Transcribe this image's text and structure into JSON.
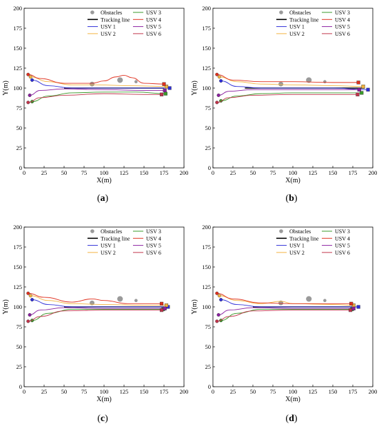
{
  "figure": {
    "colors": {
      "tracking": "#000000",
      "usv1": "#2d2dd8",
      "usv2": "#f2b340",
      "usv3": "#3a9a2a",
      "usv4": "#e0301e",
      "usv5": "#8a1fa0",
      "usv6": "#c0334a",
      "obstacle": "#9a9a9a",
      "axis": "#000000"
    },
    "legend_labels": {
      "obstacles": "Obstacles",
      "tracking": "Tracking line",
      "usv1": "USV 1",
      "usv2": "USV 2",
      "usv3": "USV 3",
      "usv4": "USV 4",
      "usv5": "USV 5",
      "usv6": "USV 6"
    },
    "axis_labels": {
      "x": "X(m)",
      "y": "Y(m)"
    },
    "ticks": {
      "x": [
        "0",
        "25",
        "50",
        "75",
        "100",
        "125",
        "150",
        "175",
        "200"
      ],
      "y": [
        "0",
        "25",
        "50",
        "75",
        "100",
        "125",
        "150",
        "175",
        "200"
      ]
    }
  },
  "chart_data": [
    {
      "type": "line",
      "panel_label": {
        "open": "(",
        "letter": "a",
        "close": ")"
      },
      "xlabel": "X(m)",
      "ylabel": "Y(m)",
      "xlim": [
        0,
        200
      ],
      "ylim": [
        0,
        200
      ],
      "legend_placement": "top-center",
      "obstacles": [
        {
          "x": 85,
          "y": 105,
          "r": 3
        },
        {
          "x": 120,
          "y": 110,
          "r": 3.5
        },
        {
          "x": 140,
          "y": 108,
          "r": 2
        }
      ],
      "tracking_line": {
        "x": [
          50,
          175
        ],
        "y": [
          100,
          100
        ]
      },
      "series": [
        {
          "name": "USV 1",
          "key": "usv1",
          "x": [
            10,
            30,
            60,
            100,
            140,
            182
          ],
          "y": [
            110,
            103,
            100,
            100,
            100,
            100
          ]
        },
        {
          "name": "USV 2",
          "key": "usv2",
          "x": [
            8,
            30,
            60,
            90,
            130,
            178
          ],
          "y": [
            114,
            108,
            104,
            104,
            103,
            102
          ]
        },
        {
          "name": "USV 3",
          "key": "usv3",
          "x": [
            10,
            30,
            60,
            100,
            140,
            177
          ],
          "y": [
            83,
            90,
            94,
            95,
            95,
            93
          ]
        },
        {
          "name": "USV 4",
          "key": "usv4",
          "x": [
            5,
            20,
            50,
            85,
            100,
            115,
            125,
            135,
            150,
            175
          ],
          "y": [
            117,
            112,
            106,
            106,
            109,
            114,
            116,
            113,
            106,
            105
          ]
        },
        {
          "name": "USV 5",
          "key": "usv5",
          "x": [
            7,
            20,
            50,
            100,
            150,
            176
          ],
          "y": [
            91,
            97,
            99,
            98,
            97,
            97
          ]
        },
        {
          "name": "USV 6",
          "key": "usv6",
          "x": [
            5,
            20,
            50,
            100,
            150,
            172
          ],
          "y": [
            82,
            88,
            91,
            93,
            92,
            92
          ]
        }
      ]
    },
    {
      "type": "line",
      "panel_label": {
        "open": "(",
        "letter": "b",
        "close": ")"
      },
      "xlabel": "X(m)",
      "ylabel": "Y(m)",
      "xlim": [
        0,
        200
      ],
      "ylim": [
        0,
        200
      ],
      "legend_placement": "top-center",
      "obstacles": [
        {
          "x": 85,
          "y": 105,
          "r": 3
        },
        {
          "x": 120,
          "y": 110,
          "r": 3.5
        },
        {
          "x": 140,
          "y": 108,
          "r": 2
        }
      ],
      "tracking_line": {
        "x": [
          40,
          190
        ],
        "y": [
          100,
          100
        ]
      },
      "series": [
        {
          "name": "USV 1",
          "key": "usv1",
          "x": [
            10,
            30,
            60,
            100,
            150,
            194
          ],
          "y": [
            109,
            102,
            100,
            100,
            100,
            98
          ]
        },
        {
          "name": "USV 2",
          "key": "usv2",
          "x": [
            8,
            30,
            60,
            100,
            150,
            188
          ],
          "y": [
            114,
            108,
            105,
            104,
            103,
            102
          ]
        },
        {
          "name": "USV 3",
          "key": "usv3",
          "x": [
            10,
            30,
            60,
            100,
            150,
            186
          ],
          "y": [
            84,
            90,
            93,
            94,
            94,
            94
          ]
        },
        {
          "name": "USV 4",
          "key": "usv4",
          "x": [
            5,
            25,
            60,
            100,
            150,
            182
          ],
          "y": [
            117,
            110,
            108,
            108,
            107,
            107
          ]
        },
        {
          "name": "USV 5",
          "key": "usv5",
          "x": [
            7,
            20,
            50,
            100,
            150,
            183
          ],
          "y": [
            91,
            96,
            98,
            98,
            98,
            98
          ]
        },
        {
          "name": "USV 6",
          "key": "usv6",
          "x": [
            5,
            20,
            50,
            100,
            150,
            181
          ],
          "y": [
            82,
            88,
            91,
            92,
            92,
            92
          ]
        }
      ]
    },
    {
      "type": "line",
      "panel_label": {
        "open": "(",
        "letter": "c",
        "close": ")"
      },
      "xlabel": "X(m)",
      "ylabel": "Y(m)",
      "xlim": [
        0,
        200
      ],
      "ylim": [
        0,
        200
      ],
      "legend_placement": "top-center",
      "obstacles": [
        {
          "x": 85,
          "y": 105,
          "r": 3
        },
        {
          "x": 120,
          "y": 110,
          "r": 3.5
        },
        {
          "x": 140,
          "y": 108,
          "r": 2
        }
      ],
      "tracking_line": {
        "x": [
          50,
          175
        ],
        "y": [
          100,
          100
        ]
      },
      "series": [
        {
          "name": "USV 1",
          "key": "usv1",
          "x": [
            10,
            30,
            60,
            100,
            150,
            180
          ],
          "y": [
            109,
            103,
            100,
            100,
            100,
            100
          ]
        },
        {
          "name": "USV 2",
          "key": "usv2",
          "x": [
            8,
            30,
            60,
            100,
            150,
            178
          ],
          "y": [
            114,
            108,
            104,
            103,
            102,
            102
          ]
        },
        {
          "name": "USV 3",
          "key": "usv3",
          "x": [
            10,
            30,
            60,
            100,
            150,
            174
          ],
          "y": [
            83,
            92,
            97,
            97,
            97,
            97
          ]
        },
        {
          "name": "USV 4",
          "key": "usv4",
          "x": [
            5,
            25,
            60,
            85,
            100,
            130,
            150,
            172
          ],
          "y": [
            117,
            112,
            106,
            110,
            108,
            104,
            104,
            104
          ]
        },
        {
          "name": "USV 5",
          "key": "usv5",
          "x": [
            7,
            20,
            50,
            100,
            150,
            176
          ],
          "y": [
            90,
            96,
            99,
            98,
            98,
            98
          ]
        },
        {
          "name": "USV 6",
          "key": "usv6",
          "x": [
            5,
            20,
            50,
            100,
            150,
            172
          ],
          "y": [
            82,
            88,
            95,
            96,
            96,
            96
          ]
        }
      ]
    },
    {
      "type": "line",
      "panel_label": {
        "open": "(",
        "letter": "d",
        "close": ")"
      },
      "xlabel": "X(m)",
      "ylabel": "Y(m)",
      "xlim": [
        0,
        200
      ],
      "ylim": [
        0,
        200
      ],
      "legend_placement": "top-center",
      "obstacles": [
        {
          "x": 85,
          "y": 105,
          "r": 3
        },
        {
          "x": 120,
          "y": 110,
          "r": 3.5
        },
        {
          "x": 140,
          "y": 108,
          "r": 2
        }
      ],
      "tracking_line": {
        "x": [
          50,
          175
        ],
        "y": [
          100,
          100
        ]
      },
      "series": [
        {
          "name": "USV 1",
          "key": "usv1",
          "x": [
            10,
            30,
            60,
            100,
            150,
            182
          ],
          "y": [
            109,
            103,
            100,
            100,
            100,
            100
          ]
        },
        {
          "name": "USV 2",
          "key": "usv2",
          "x": [
            8,
            30,
            60,
            85,
            100,
            150,
            176
          ],
          "y": [
            114,
            108,
            104,
            107,
            104,
            103,
            102
          ]
        },
        {
          "name": "USV 3",
          "key": "usv3",
          "x": [
            10,
            30,
            60,
            100,
            150,
            174
          ],
          "y": [
            83,
            92,
            97,
            97,
            97,
            97
          ]
        },
        {
          "name": "USV 4",
          "key": "usv4",
          "x": [
            5,
            25,
            60,
            100,
            150,
            173
          ],
          "y": [
            117,
            110,
            105,
            104,
            104,
            104
          ]
        },
        {
          "name": "USV 5",
          "key": "usv5",
          "x": [
            7,
            20,
            50,
            100,
            150,
            176
          ],
          "y": [
            90,
            96,
            99,
            98,
            98,
            98
          ]
        },
        {
          "name": "USV 6",
          "key": "usv6",
          "x": [
            5,
            20,
            50,
            100,
            150,
            172
          ],
          "y": [
            82,
            88,
            95,
            96,
            96,
            96
          ]
        }
      ]
    }
  ]
}
